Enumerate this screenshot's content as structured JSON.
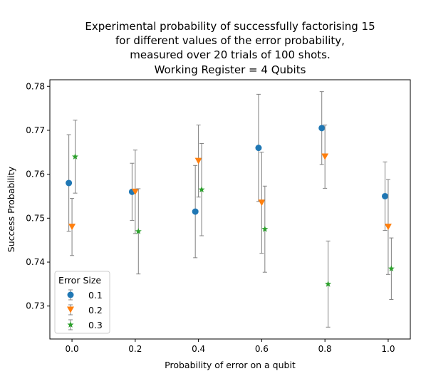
{
  "chart_data": {
    "type": "scatter",
    "title": [
      "Experimental probability of successfully factorising 15",
      "for different values of the error probability,",
      "measured over 20 trials of 100 shots.",
      "Working Register = 4 Qubits"
    ],
    "xlabel": "Probability of error on a qubit",
    "ylabel": "Success Probability",
    "xlim": [
      -0.07,
      1.07
    ],
    "ylim": [
      0.7225,
      0.7815
    ],
    "xticks": [
      0.0,
      0.2,
      0.4,
      0.6,
      0.8,
      1.0
    ],
    "xtick_labels": [
      "0.0",
      "0.2",
      "0.4",
      "0.6",
      "0.8",
      "1.0"
    ],
    "yticks": [
      0.73,
      0.74,
      0.75,
      0.76,
      0.77,
      0.78
    ],
    "ytick_labels": [
      "0.73",
      "0.74",
      "0.75",
      "0.76",
      "0.77",
      "0.78"
    ],
    "grid": false,
    "legend": {
      "title": "Error Size",
      "position": "lower-left"
    },
    "series": [
      {
        "name": "0.1",
        "color": "#1f77b4",
        "marker": "circle",
        "x": [
          -0.01,
          0.19,
          0.39,
          0.59,
          0.79,
          0.99
        ],
        "y": [
          0.758,
          0.756,
          0.7515,
          0.766,
          0.7705,
          0.755
        ],
        "err": [
          0.011,
          0.0065,
          0.0105,
          0.0122,
          0.0083,
          0.0078
        ]
      },
      {
        "name": "0.2",
        "color": "#ff7f0e",
        "marker": "triangle-down",
        "x": [
          0.0,
          0.2,
          0.4,
          0.6,
          0.8,
          1.0
        ],
        "y": [
          0.748,
          0.756,
          0.763,
          0.7535,
          0.764,
          0.748
        ],
        "err": [
          0.0065,
          0.0095,
          0.0082,
          0.0115,
          0.0072,
          0.0108
        ]
      },
      {
        "name": "0.3",
        "color": "#2ca02c",
        "marker": "star",
        "x": [
          0.01,
          0.21,
          0.41,
          0.61,
          0.81,
          1.01
        ],
        "y": [
          0.764,
          0.747,
          0.7565,
          0.7475,
          0.735,
          0.7385
        ],
        "err": [
          0.0083,
          0.0097,
          0.0105,
          0.0098,
          0.0098,
          0.007
        ]
      }
    ],
    "errorbar_color": "#808080"
  }
}
